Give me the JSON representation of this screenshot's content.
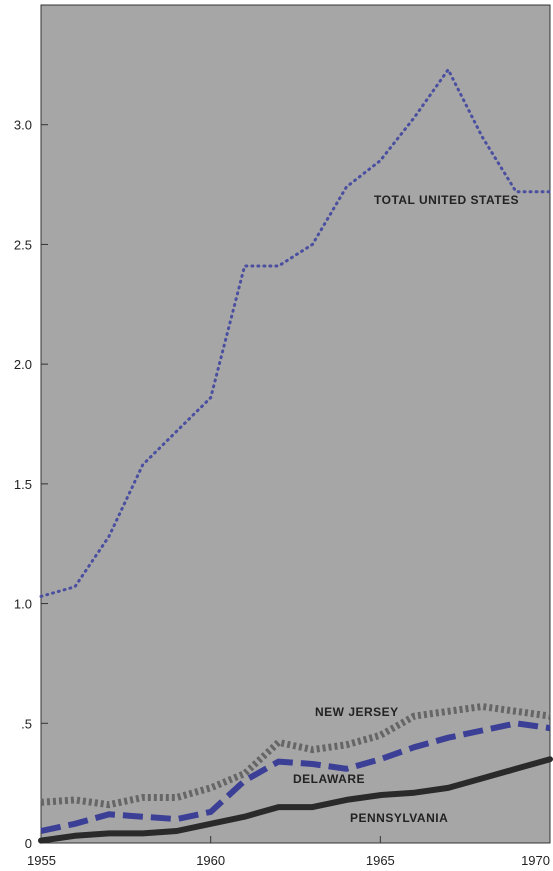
{
  "chart_data": {
    "type": "line",
    "title": "",
    "xlabel": "",
    "ylabel": "",
    "xlim": [
      1955,
      1970
    ],
    "ylim": [
      0,
      3.5
    ],
    "grid": false,
    "x_ticks": [
      {
        "value": 1955,
        "label": "1955"
      },
      {
        "value": 1960,
        "label": "1960"
      },
      {
        "value": 1965,
        "label": "1965"
      },
      {
        "value": 1970,
        "label": "1970"
      }
    ],
    "y_ticks": [
      {
        "value": 0,
        "label": "0"
      },
      {
        "value": 0.5,
        "label": ".5"
      },
      {
        "value": 1.0,
        "label": "1.0"
      },
      {
        "value": 1.5,
        "label": "1.5"
      },
      {
        "value": 2.0,
        "label": "2.0"
      },
      {
        "value": 2.5,
        "label": "2.5"
      },
      {
        "value": 3.0,
        "label": "3.0"
      }
    ],
    "plot_background": "#a6a6a6",
    "series": [
      {
        "name": "TOTAL UNITED STATES",
        "style": "dotted",
        "color": "#4a4fa0",
        "x": [
          1955,
          1956,
          1957,
          1958,
          1959,
          1960,
          1961,
          1962,
          1963,
          1964,
          1965,
          1966,
          1967,
          1968,
          1969,
          1970
        ],
        "y": [
          1.03,
          1.07,
          1.28,
          1.58,
          1.72,
          1.86,
          2.41,
          2.41,
          2.5,
          2.74,
          2.85,
          3.03,
          3.23,
          2.95,
          2.72,
          2.72
        ]
      },
      {
        "name": "NEW JERSEY",
        "style": "dashed-grey",
        "color": "#666666",
        "x": [
          1955,
          1956,
          1957,
          1958,
          1959,
          1960,
          1961,
          1962,
          1963,
          1964,
          1965,
          1966,
          1967,
          1968,
          1969,
          1970
        ],
        "y": [
          0.17,
          0.18,
          0.16,
          0.19,
          0.19,
          0.23,
          0.29,
          0.42,
          0.39,
          0.41,
          0.45,
          0.53,
          0.55,
          0.57,
          0.55,
          0.53
        ]
      },
      {
        "name": "DELAWARE",
        "style": "dashed-blue",
        "color": "#3c3f96",
        "x": [
          1955,
          1956,
          1957,
          1958,
          1959,
          1960,
          1961,
          1962,
          1963,
          1964,
          1965,
          1966,
          1967,
          1968,
          1969,
          1970
        ],
        "y": [
          0.05,
          0.08,
          0.12,
          0.11,
          0.1,
          0.13,
          0.26,
          0.34,
          0.33,
          0.31,
          0.35,
          0.4,
          0.44,
          0.47,
          0.5,
          0.48
        ]
      },
      {
        "name": "PENNSYLVANIA",
        "style": "solid",
        "color": "#2a2a2a",
        "x": [
          1955,
          1956,
          1957,
          1958,
          1959,
          1960,
          1961,
          1962,
          1963,
          1964,
          1965,
          1966,
          1967,
          1968,
          1969,
          1970
        ],
        "y": [
          0.01,
          0.03,
          0.04,
          0.04,
          0.05,
          0.08,
          0.11,
          0.15,
          0.15,
          0.18,
          0.2,
          0.21,
          0.23,
          0.27,
          0.31,
          0.35
        ]
      }
    ]
  }
}
